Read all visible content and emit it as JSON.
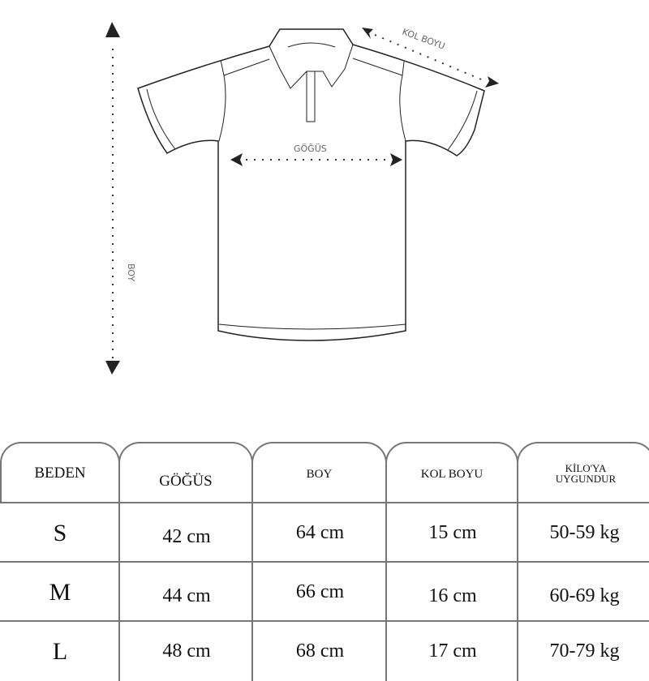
{
  "diagram": {
    "labels": {
      "length": "BOY",
      "chest": "GÖĞÜS",
      "sleeve": "KOL BOYU"
    }
  },
  "table": {
    "headers": [
      "BEDEN",
      "GÖĞÜS",
      "BOY",
      "KOL BOYU",
      "KİLO'YA UYGUNDUR"
    ],
    "header_last_lines": [
      "KİLO'YA",
      "UYGUNDUR"
    ],
    "rows": [
      [
        "S",
        "42 cm",
        "64 cm",
        "15  cm",
        "50-59 kg"
      ],
      [
        "M",
        "44 cm",
        "66 cm",
        "16 cm",
        "60-69 kg"
      ],
      [
        "L",
        "48 cm",
        "68 cm",
        "17 cm",
        "70-79 kg"
      ]
    ]
  },
  "colors": {
    "border": "#777777",
    "outline": "#222222",
    "label": "#666666"
  }
}
